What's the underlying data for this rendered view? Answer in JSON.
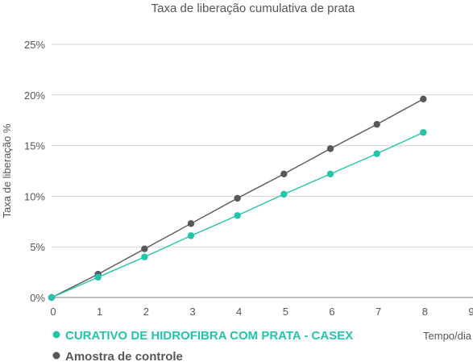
{
  "chart_data": {
    "type": "line",
    "title": "Taxa de liberação cumulativa de prata",
    "ylabel": "Taxa de liberação %",
    "xlabel": "Tempo/dia",
    "xlim": [
      0,
      9
    ],
    "ylim": [
      0,
      25
    ],
    "x_ticks": [
      "0",
      "1",
      "2",
      "3",
      "4",
      "5",
      "6",
      "7",
      "8",
      "9"
    ],
    "y_ticks": [
      "0%",
      "5%",
      "10%",
      "15%",
      "20%",
      "25%"
    ],
    "grid": "horizontal",
    "legend_position": "bottom-left",
    "series": [
      {
        "name": "CURATIVO DE HIDROFIBRA COM PRATA - CASEX",
        "color": "#22c4aa",
        "x": [
          0,
          1,
          2,
          3,
          4,
          5,
          6,
          7,
          8
        ],
        "values": [
          0,
          2.0,
          4.0,
          6.1,
          8.1,
          10.2,
          12.2,
          14.2,
          16.3
        ]
      },
      {
        "name": "Amostra de controle",
        "color": "#58585a",
        "x": [
          0,
          1,
          2,
          3,
          4,
          5,
          6,
          7,
          8
        ],
        "values": [
          0,
          2.3,
          4.8,
          7.3,
          9.8,
          12.2,
          14.7,
          17.1,
          19.6
        ]
      }
    ]
  }
}
